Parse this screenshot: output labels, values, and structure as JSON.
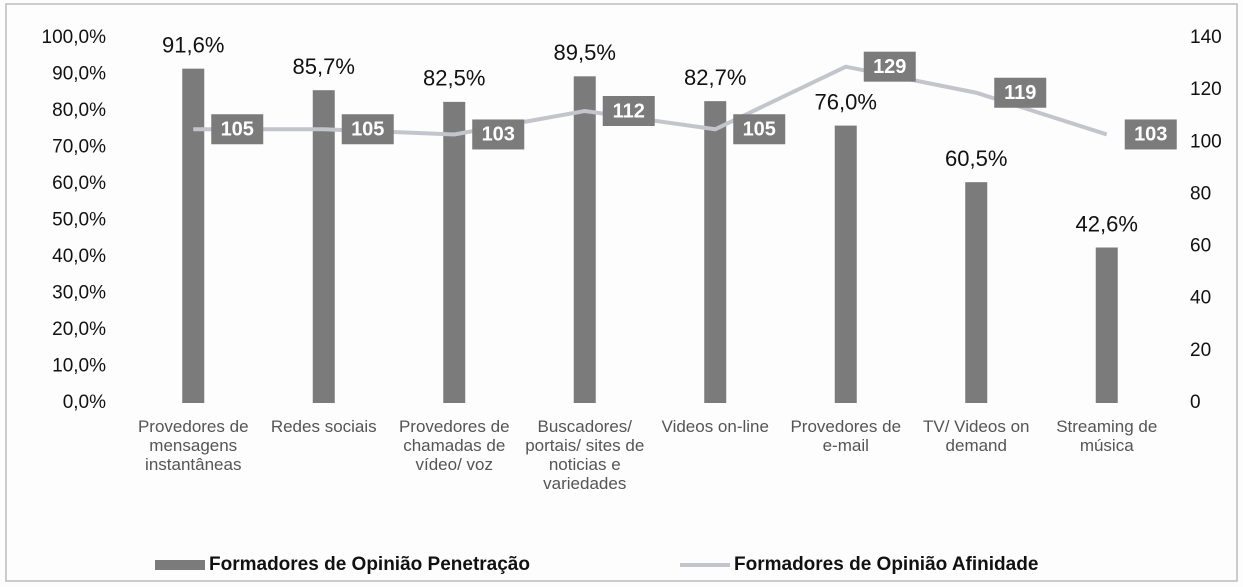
{
  "chart_data": {
    "type": "bar",
    "categories": [
      "Provedores de mensagens instantâneas",
      "Redes sociais",
      "Provedores de chamadas de vídeo/ voz",
      "Buscadores/ portais/ sites de noticias e variedades",
      "Videos on-line",
      "Provedores de e-mail",
      "TV/ Videos on demand",
      "Streaming de música"
    ],
    "series": [
      {
        "name": "Formadores de Opinião Penetração",
        "type": "bar",
        "color": "#7b7b7b",
        "values": [
          91.6,
          85.7,
          82.5,
          89.5,
          82.7,
          76.0,
          60.5,
          42.6
        ],
        "value_labels": [
          "91,6%",
          "85,7%",
          "82,5%",
          "89,5%",
          "82,7%",
          "76,0%",
          "60,5%",
          "42,6%"
        ]
      },
      {
        "name": "Formadores de Opinião Afinidade",
        "type": "line",
        "axis": "y2",
        "color": "#c4c4cc",
        "values": [
          105,
          105,
          103,
          112,
          105,
          129,
          119,
          103
        ]
      }
    ],
    "ylim": [
      0,
      100
    ],
    "yticks": [
      {
        "value": 0,
        "label": "0,0%"
      },
      {
        "value": 10,
        "label": "10,0%"
      },
      {
        "value": 20,
        "label": "20,0%"
      },
      {
        "value": 30,
        "label": "30,0%"
      },
      {
        "value": 40,
        "label": "40,0%"
      },
      {
        "value": 50,
        "label": "50,0%"
      },
      {
        "value": 60,
        "label": "60,0%"
      },
      {
        "value": 70,
        "label": "70,0%"
      },
      {
        "value": 80,
        "label": "80,0%"
      },
      {
        "value": 90,
        "label": "90,0%"
      },
      {
        "value": 100,
        "label": "100,0%"
      }
    ],
    "y2lim": [
      0,
      140
    ],
    "y2ticks": [
      0,
      20,
      40,
      60,
      80,
      100,
      120,
      140
    ],
    "grid": false,
    "legend": "bottom"
  }
}
